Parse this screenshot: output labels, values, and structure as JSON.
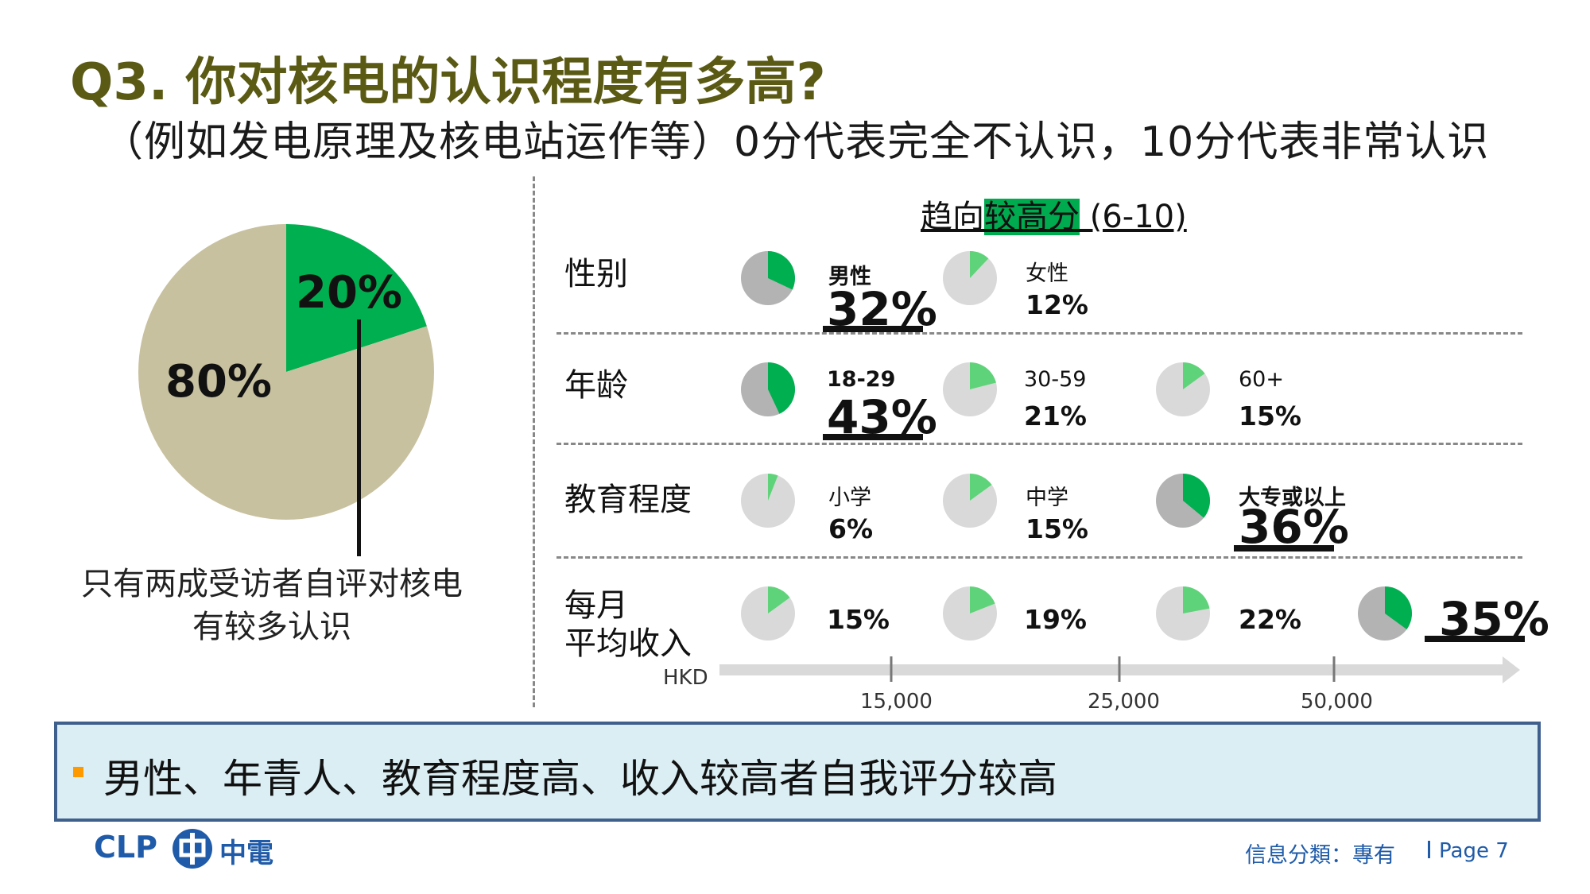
{
  "slide": {
    "title": "Q3.  你对核电的认识程度有多高?",
    "subtitle": "（例如发电原理及核电站运作等）0分代表完全不认识，10分代表非常认识",
    "caption": "只有两成受访者自评对核电有较多认识",
    "section_title_pre": "趋向",
    "section_title_hl": "较高分",
    "section_title_post": " (6-10)",
    "conclusion": "男性、年青人、教育程度高、收入较高者自我评分较高",
    "footer": {
      "logo_text": "CLP",
      "logo_cn": "中電",
      "info": "信息分類：專有",
      "page": "Page 7"
    }
  },
  "colors": {
    "green": "#00b050",
    "light_green": "#5fd37a",
    "tan": "#c8c1a0",
    "light_gray": "#d9d9d9",
    "mid_gray": "#b3b3b3"
  },
  "chart_data": [
    {
      "type": "pie",
      "title": "",
      "slices": [
        {
          "label": "20%",
          "value": 20,
          "color": "#00b050"
        },
        {
          "label": "80%",
          "value": 80,
          "color": "#c8c1a0"
        }
      ]
    },
    {
      "type": "pie",
      "title": "趋向较高分 (6-10)",
      "groups": [
        {
          "name": "性别",
          "items": [
            {
              "category": "男性",
              "value": 32,
              "label": "32%",
              "highlight": true
            },
            {
              "category": "女性",
              "value": 12,
              "label": "12%",
              "highlight": false
            }
          ]
        },
        {
          "name": "年龄",
          "items": [
            {
              "category": "18-29",
              "value": 43,
              "label": "43%",
              "highlight": true
            },
            {
              "category": "30-59",
              "value": 21,
              "label": "21%",
              "highlight": false
            },
            {
              "category": "60+",
              "value": 15,
              "label": "15%",
              "highlight": false
            }
          ]
        },
        {
          "name": "教育程度",
          "items": [
            {
              "category": "小学",
              "value": 6,
              "label": "6%",
              "highlight": false
            },
            {
              "category": "中学",
              "value": 15,
              "label": "15%",
              "highlight": false
            },
            {
              "category": "大专或以上",
              "value": 36,
              "label": "36%",
              "highlight": true
            }
          ]
        },
        {
          "name": "每月\n平均收入",
          "items": [
            {
              "category": "",
              "value": 15,
              "label": "15%",
              "highlight": false
            },
            {
              "category": "",
              "value": 19,
              "label": "19%",
              "highlight": false
            },
            {
              "category": "",
              "value": 22,
              "label": "22%",
              "highlight": false
            },
            {
              "category": "",
              "value": 35,
              "label": "35%",
              "highlight": true
            }
          ]
        }
      ],
      "income_axis": {
        "unit": "HKD",
        "ticks": [
          "15,000",
          "25,000",
          "50,000"
        ]
      }
    }
  ]
}
